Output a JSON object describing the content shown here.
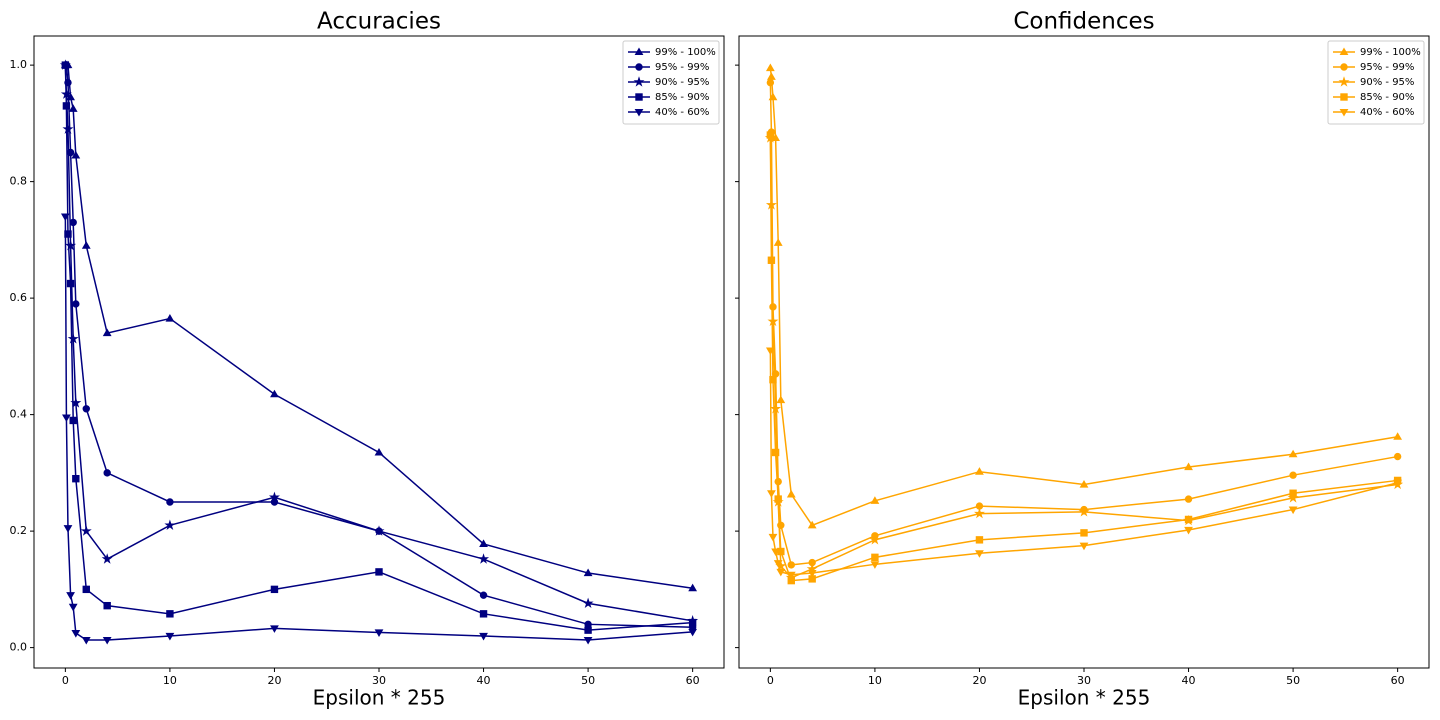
{
  "chart_data": [
    {
      "type": "line",
      "title": "Accuracies",
      "xlabel": "Epsilon * 255",
      "x": [
        0,
        0.1,
        0.25,
        0.5,
        0.75,
        1,
        2,
        4,
        10,
        20,
        30,
        40,
        50,
        60
      ],
      "xlim": [
        -3,
        63
      ],
      "xticks": [
        0,
        10,
        20,
        30,
        40,
        50,
        60
      ],
      "ylim": [
        -0.035,
        1.05
      ],
      "yticks": [
        {
          "value": 0,
          "label": "0.0"
        },
        0.2,
        0.4,
        0.6,
        0.8,
        {
          "value": 1,
          "label": "1.0"
        }
      ],
      "legend": "upper right",
      "series": [
        {
          "name": "99% - 100%",
          "color": "#000080",
          "marker": "triangle-up",
          "values": [
            1.0,
            1.0,
            1.0,
            0.945,
            0.925,
            0.845,
            0.69,
            0.54,
            0.565,
            0.435,
            0.335,
            0.178,
            0.128,
            0.102
          ]
        },
        {
          "name": "95% - 99%",
          "color": "#000080",
          "marker": "circle",
          "values": [
            1.0,
            1.0,
            0.97,
            0.85,
            0.73,
            0.59,
            0.41,
            0.3,
            0.25,
            0.25,
            0.2,
            0.09,
            0.04,
            0.035
          ]
        },
        {
          "name": "90% - 95%",
          "color": "#000080",
          "marker": "star",
          "values": [
            1.0,
            0.95,
            0.89,
            0.69,
            0.53,
            0.42,
            0.2,
            0.152,
            0.21,
            0.258,
            0.2,
            0.152,
            0.076,
            0.046
          ]
        },
        {
          "name": "85% - 90%",
          "color": "#000080",
          "marker": "square",
          "values": [
            1.0,
            0.93,
            0.71,
            0.625,
            0.39,
            0.29,
            0.1,
            0.072,
            0.058,
            0.1,
            0.13,
            0.058,
            0.03,
            0.043
          ]
        },
        {
          "name": "40% - 60%",
          "color": "#000080",
          "marker": "triangle-down",
          "values": [
            0.74,
            0.395,
            0.205,
            0.09,
            0.07,
            0.025,
            0.013,
            0.013,
            0.02,
            0.033,
            0.026,
            0.02,
            0.013,
            0.027
          ]
        }
      ]
    },
    {
      "type": "line",
      "title": "Confidences",
      "xlabel": "Epsilon * 255",
      "x": [
        0,
        0.1,
        0.25,
        0.5,
        0.75,
        1,
        2,
        4,
        10,
        20,
        30,
        40,
        50,
        60
      ],
      "xlim": [
        -3,
        63
      ],
      "xticks": [
        0,
        10,
        20,
        30,
        40,
        50,
        60
      ],
      "ylim": [
        -0.035,
        1.05
      ],
      "sharey": true,
      "legend": "upper right",
      "series": [
        {
          "name": "99% - 100%",
          "color": "#ffa500",
          "marker": "triangle-up",
          "values": [
            0.995,
            0.98,
            0.945,
            0.875,
            0.695,
            0.425,
            0.263,
            0.21,
            0.252,
            0.302,
            0.28,
            0.31,
            0.332,
            0.362
          ]
        },
        {
          "name": "95% - 99%",
          "color": "#ffa500",
          "marker": "circle",
          "values": [
            0.97,
            0.885,
            0.585,
            0.47,
            0.285,
            0.21,
            0.142,
            0.146,
            0.192,
            0.243,
            0.237,
            0.255,
            0.296,
            0.328
          ]
        },
        {
          "name": "90% - 95%",
          "color": "#ffa500",
          "marker": "star",
          "values": [
            0.875,
            0.76,
            0.56,
            0.41,
            0.25,
            0.14,
            0.12,
            0.135,
            0.185,
            0.23,
            0.233,
            0.218,
            0.257,
            0.28
          ]
        },
        {
          "name": "85% - 90%",
          "color": "#ffa500",
          "marker": "square",
          "values": [
            0.88,
            0.665,
            0.46,
            0.335,
            0.255,
            0.165,
            0.115,
            0.118,
            0.155,
            0.185,
            0.197,
            0.22,
            0.265,
            0.287
          ]
        },
        {
          "name": "40% - 60%",
          "color": "#ffa500",
          "marker": "triangle-down",
          "values": [
            0.51,
            0.265,
            0.19,
            0.165,
            0.145,
            0.13,
            0.125,
            0.128,
            0.143,
            0.162,
            0.175,
            0.202,
            0.237,
            0.283
          ]
        }
      ]
    }
  ]
}
